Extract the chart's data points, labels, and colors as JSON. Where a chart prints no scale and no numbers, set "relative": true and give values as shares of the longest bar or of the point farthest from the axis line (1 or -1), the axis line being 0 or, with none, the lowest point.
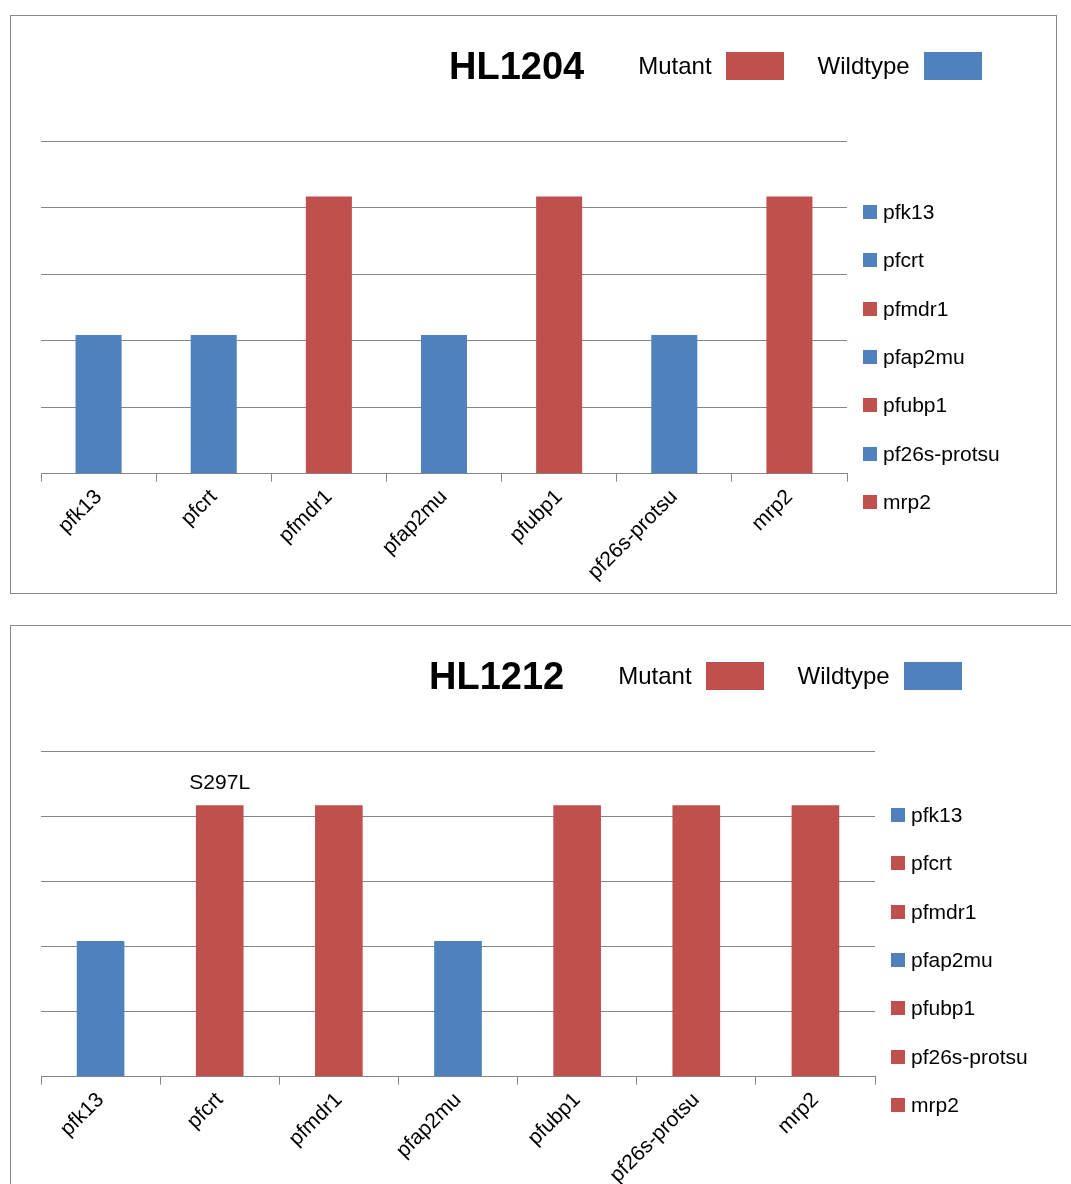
{
  "chart_data": [
    {
      "type": "bar",
      "title": "HL1204",
      "relative": true,
      "stacked": true,
      "grid": "y",
      "legend": "top right",
      "categories": [
        "pfk13",
        "pfcrt",
        "pfmdr1",
        "pfap2mu",
        "pfubp1",
        "pf26s-protsu",
        "mrp2"
      ],
      "series": [
        {
          "name": "Mutant",
          "color": "#c0504d",
          "values": [
            null,
            null,
            1,
            null,
            1,
            null,
            1
          ]
        },
        {
          "name": "Wildtype",
          "color": "#4f81bd",
          "values": [
            0.5,
            0.5,
            null,
            0.5,
            null,
            0.5,
            null
          ]
        }
      ]
    },
    {
      "type": "bar",
      "title": "HL1212",
      "relative": true,
      "stacked": true,
      "grid": "y",
      "legend": "top right",
      "categories": [
        "pfk13",
        "pfcrt",
        "pfmdr1",
        "pfap2mu",
        "pfubp1",
        "pf26s-protsu",
        "mrp2"
      ],
      "series": [
        {
          "name": "Mutant",
          "color": "#c0504d",
          "values": [
            null,
            1,
            1,
            null,
            1,
            1,
            1
          ]
        },
        {
          "name": "Wildtype",
          "color": "#4f81bd",
          "values": [
            0.5,
            null,
            null,
            0.5,
            null,
            null,
            null
          ]
        }
      ],
      "annotations": [
        {
          "text": "S297L",
          "x": "pfcrt",
          "y": 1
        }
      ]
    }
  ]
}
